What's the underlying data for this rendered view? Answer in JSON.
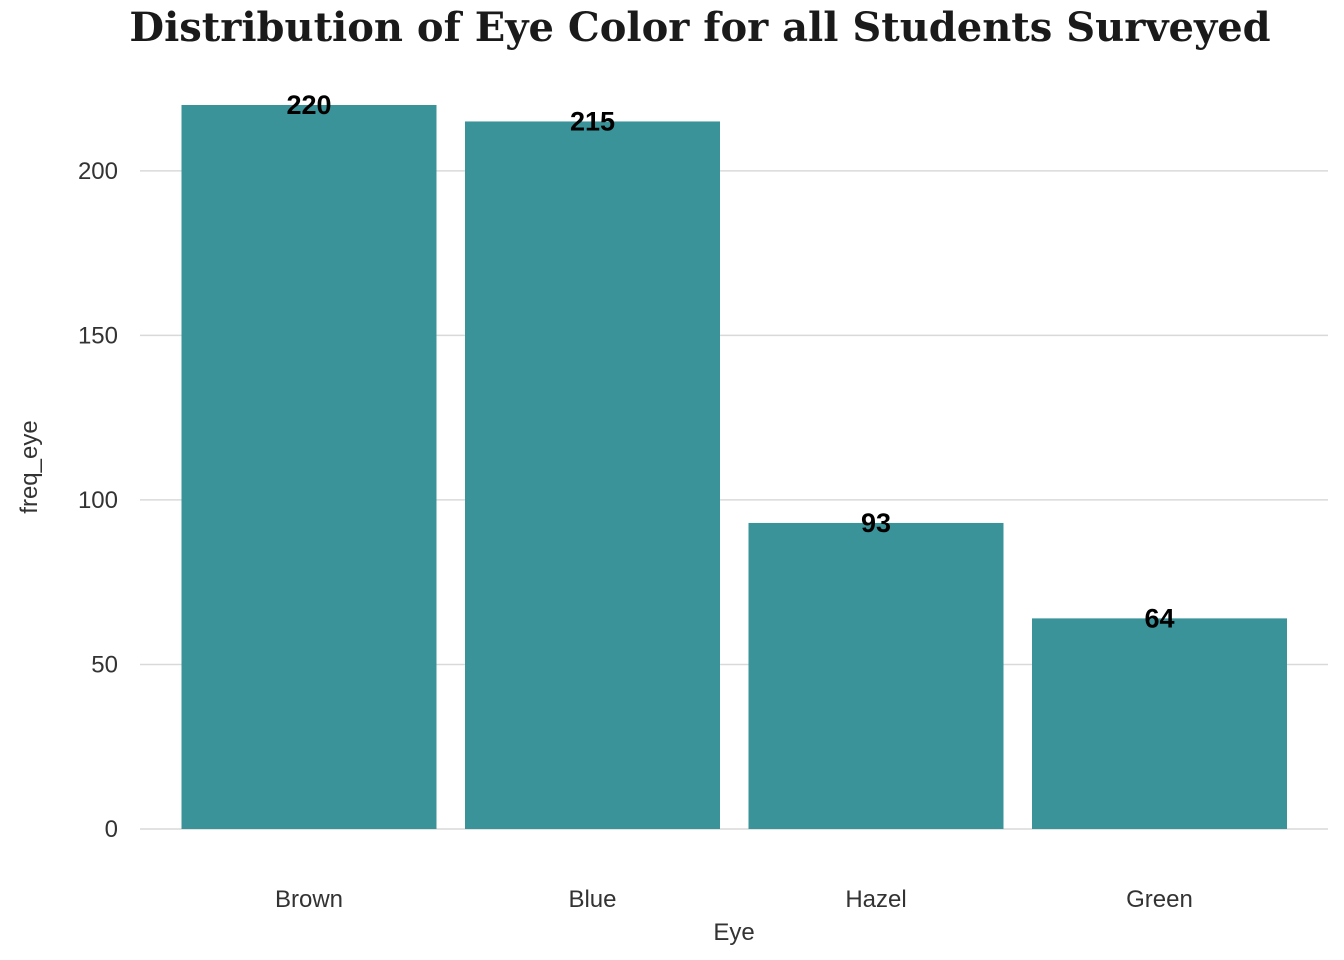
{
  "chart_data": {
    "type": "bar",
    "title": "Distribution of Eye Color for all Students Surveyed",
    "xlabel": "Eye",
    "ylabel": "freq_eye",
    "categories": [
      "Brown",
      "Blue",
      "Hazel",
      "Green"
    ],
    "values": [
      220,
      215,
      93,
      64
    ],
    "data_labels": [
      "220",
      "215",
      "93",
      "64"
    ],
    "ylim": [
      0,
      220
    ],
    "yticks": [
      0,
      50,
      100,
      150,
      200
    ],
    "ytick_labels": [
      "0",
      "50",
      "100",
      "150",
      "200"
    ],
    "grid": true,
    "legend": "none",
    "bar_color": "#3a9399"
  }
}
